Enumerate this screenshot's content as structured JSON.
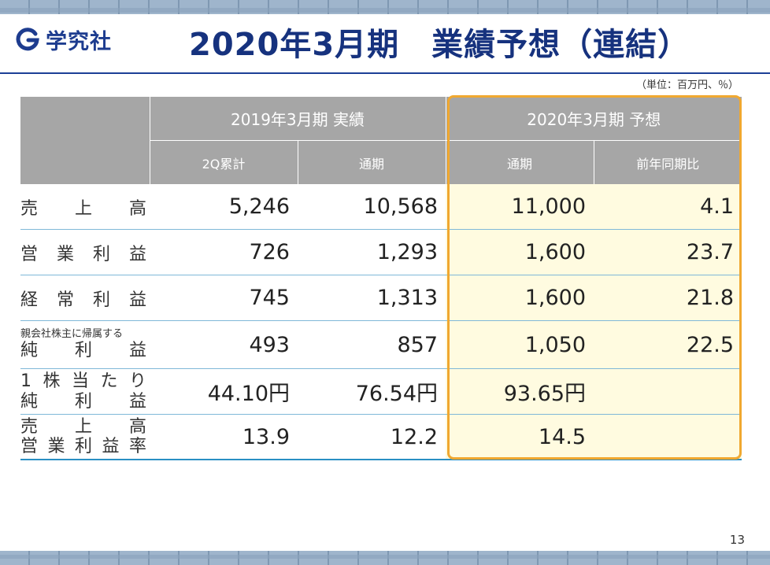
{
  "company": {
    "name": "学究社"
  },
  "title": "2020年3月期　業績予想（連結）",
  "unit_note": "（単位：百万円、％）",
  "header": {
    "group1": "2019年3月期  実績",
    "group2": "2020年3月期  予想",
    "sub": [
      "2Q累計",
      "通期",
      "通期",
      "前年同期比"
    ]
  },
  "rows": [
    {
      "label_chars": [
        "売",
        "上",
        "高"
      ],
      "values": [
        "5,246",
        "10,568",
        "11,000",
        "4.1"
      ]
    },
    {
      "label_chars": [
        "営",
        "業",
        "利",
        "益"
      ],
      "values": [
        "726",
        "1,293",
        "1,600",
        "23.7"
      ]
    },
    {
      "label_chars": [
        "経",
        "常",
        "利",
        "益"
      ],
      "values": [
        "745",
        "1,313",
        "1,600",
        "21.8"
      ]
    },
    {
      "label_small": "親会社株主に帰属する",
      "label_chars": [
        "純",
        "利",
        "益"
      ],
      "values": [
        "493",
        "857",
        "1,050",
        "22.5"
      ]
    },
    {
      "label_line1": [
        "1",
        "株",
        "当",
        "た",
        "り"
      ],
      "label_chars": [
        "純",
        "利",
        "益"
      ],
      "values": [
        "44.10円",
        "76.54円",
        "93.65円",
        ""
      ]
    },
    {
      "label_line1": [
        "売",
        "上",
        "高"
      ],
      "label_chars": [
        "営",
        "業",
        "利",
        "益",
        "率"
      ],
      "values": [
        "13.9",
        "12.2",
        "14.5",
        ""
      ]
    }
  ],
  "page_number": "13",
  "colors": {
    "navy": "#16327e",
    "header_gray": "#a6a6a6",
    "forecast_fill": "#fffbe0",
    "forecast_border": "#f0a830",
    "row_rule": "#7fb8d8"
  }
}
